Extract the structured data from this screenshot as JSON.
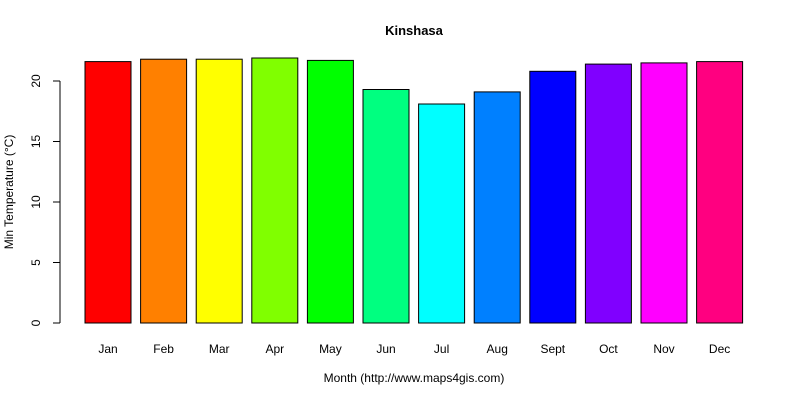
{
  "chart_data": {
    "type": "bar",
    "title": "Kinshasa",
    "xlabel": "Month (http://www.maps4gis.com)",
    "ylabel": "Min Temperature (°C)",
    "categories": [
      "Jan",
      "Feb",
      "Mar",
      "Apr",
      "May",
      "Jun",
      "Jul",
      "Aug",
      "Sept",
      "Oct",
      "Nov",
      "Dec"
    ],
    "values": [
      21.6,
      21.8,
      21.8,
      21.9,
      21.7,
      19.3,
      18.1,
      19.1,
      20.8,
      21.4,
      21.5,
      21.6
    ],
    "colors": [
      "#FF0000",
      "#FF8000",
      "#FFFF00",
      "#80FF00",
      "#00FF00",
      "#00FF80",
      "#00FFFF",
      "#0080FF",
      "#0000FF",
      "#8000FF",
      "#FF00FF",
      "#FF0080"
    ],
    "yticks": [
      0,
      5,
      10,
      15,
      20
    ],
    "ylim": [
      0,
      22.8
    ],
    "grid": false,
    "legend": "none"
  }
}
